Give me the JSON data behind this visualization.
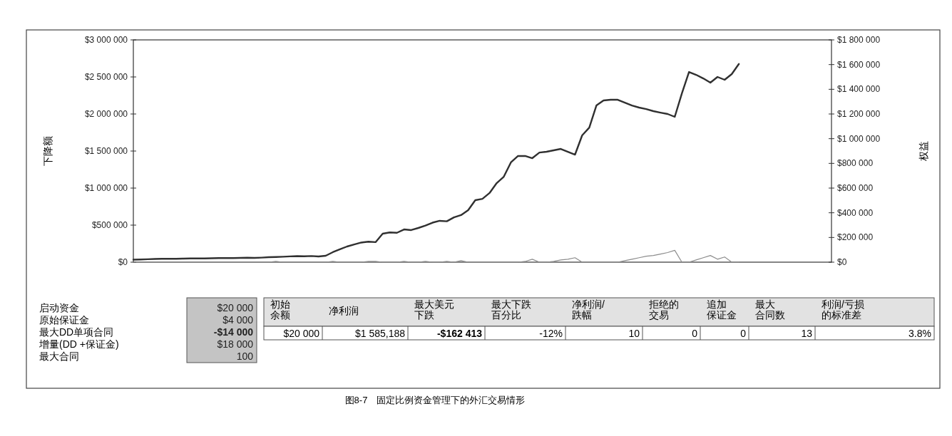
{
  "chart_data": {
    "type": "line",
    "ylabel": "下降额",
    "y2label": "权益",
    "categories": [
      null,
      null,
      null,
      null,
      null,
      null,
      null,
      null,
      null,
      null,
      null,
      null,
      null,
      null,
      null,
      null,
      null,
      null,
      null,
      null,
      null,
      null,
      null,
      null,
      null,
      null,
      null,
      null,
      null,
      null,
      null,
      null,
      null,
      null,
      null,
      null,
      null,
      null,
      null,
      null,
      null,
      null,
      null,
      null,
      null,
      null,
      null,
      null,
      null,
      null,
      null,
      null,
      null,
      null,
      null,
      null,
      null,
      null,
      null,
      null,
      null,
      null,
      null,
      null,
      null,
      null,
      null,
      null,
      null,
      null,
      null,
      null,
      null,
      null,
      null,
      null,
      null,
      null,
      null,
      null,
      null,
      null,
      null,
      null,
      null,
      null,
      null,
      null,
      null,
      null,
      null,
      null,
      null,
      null,
      null,
      null,
      null,
      null,
      null
    ],
    "series": [
      {
        "color": "#303030",
        "axis": "y2",
        "values": [
          20000,
          22000,
          24000,
          26000,
          27000,
          28000,
          27000,
          29000,
          30000,
          31000,
          30000,
          32000,
          33000,
          34000,
          33000,
          35000,
          36000,
          35000,
          37000,
          40000,
          42000,
          44000,
          47000,
          49000,
          48000,
          50000,
          46000,
          52000,
          81000,
          104000,
          127000,
          144000,
          159000,
          166000,
          162000,
          231000,
          241000,
          238000,
          265000,
          260000,
          277000,
          296000,
          320000,
          335000,
          331000,
          363000,
          381000,
          421000,
          502000,
          513000,
          560000,
          640000,
          692000,
          808000,
          860000,
          860000,
          842000,
          888000,
          894000,
          906000,
          917000,
          894000,
          871000,
          1027000,
          1090000,
          1269000,
          1310000,
          1315000,
          1315000,
          1292000,
          1269000,
          1252000,
          1240000,
          1223000,
          1211000,
          1200000,
          1177000,
          1367000,
          1540000,
          1517000,
          1488000,
          1454000,
          1500000,
          1477000,
          1523000,
          1605000,
          null,
          null,
          null,
          null,
          null,
          null,
          null,
          null,
          null,
          null,
          null,
          null,
          null
        ]
      },
      {
        "color": "#8c8c8c",
        "values": [
          0,
          0,
          0,
          0,
          0,
          0,
          0,
          0,
          0,
          0,
          0,
          0,
          0,
          0,
          0,
          0,
          0,
          0,
          0,
          0,
          10000,
          0,
          0,
          0,
          0,
          0,
          0,
          0,
          10000,
          0,
          0,
          0,
          0,
          10000,
          10000,
          0,
          0,
          0,
          10000,
          0,
          0,
          10000,
          0,
          0,
          10000,
          0,
          20000,
          0,
          0,
          0,
          0,
          0,
          0,
          0,
          0,
          10000,
          40000,
          0,
          0,
          10000,
          30000,
          40000,
          60000,
          0,
          0,
          0,
          0,
          0,
          0,
          20000,
          40000,
          60000,
          80000,
          90000,
          110000,
          130000,
          160000,
          0,
          0,
          30000,
          60000,
          90000,
          40000,
          70000,
          0,
          0,
          null,
          null,
          null,
          null,
          null,
          null,
          null,
          null,
          null,
          null,
          null,
          null,
          null
        ]
      }
    ],
    "ylim": [
      0,
      3000000
    ],
    "yticks": [
      {
        "value": 0,
        "label": "$0"
      },
      {
        "value": 500000,
        "label": "$500 000"
      },
      {
        "value": 1000000,
        "label": "$1 000 000"
      },
      {
        "value": 1500000,
        "label": "$1 500 000"
      },
      {
        "value": 2000000,
        "label": "$2 000 000"
      },
      {
        "value": 2500000,
        "label": "$2 500 000"
      },
      {
        "value": 3000000,
        "label": "$3 000 000"
      }
    ],
    "y2lim": [
      0,
      1800000
    ],
    "y2ticks": [
      {
        "value": 0,
        "label": "$0"
      },
      {
        "value": 200000,
        "label": "$200 000"
      },
      {
        "value": 400000,
        "label": "$400 000"
      },
      {
        "value": 600000,
        "label": "$600 000"
      },
      {
        "value": 800000,
        "label": "$800 000"
      },
      {
        "value": 1000000,
        "label": "$1 000 000"
      },
      {
        "value": 1200000,
        "label": "$1 200 000"
      },
      {
        "value": 1400000,
        "label": "$1 400 000"
      },
      {
        "value": 1600000,
        "label": "$1 600 000"
      },
      {
        "value": 1800000,
        "label": "$1 800 000"
      }
    ],
    "tick_labels": "y",
    "annotations": [
      "启动资金",
      "原始保证金",
      "最大DD单项合同",
      "增量(DD +保证金)",
      "最大合同",
      "$20 000",
      "$4 000",
      "-$14 000",
      "$18 000",
      "100",
      "初始余额",
      "净利润",
      "最大美元下跌",
      "最大下跌百分比",
      "净利润/跌幅",
      "拒绝的交易",
      "追加保证金",
      "最大合同数",
      "利润/亏损的标准差",
      "$20 000",
      "$1 585,188",
      "-$162 413",
      "-12%",
      "10",
      "0",
      "0",
      "13",
      "3.8%",
      "图8-7　固定比例资金管理下的外汇交易情形"
    ]
  }
}
